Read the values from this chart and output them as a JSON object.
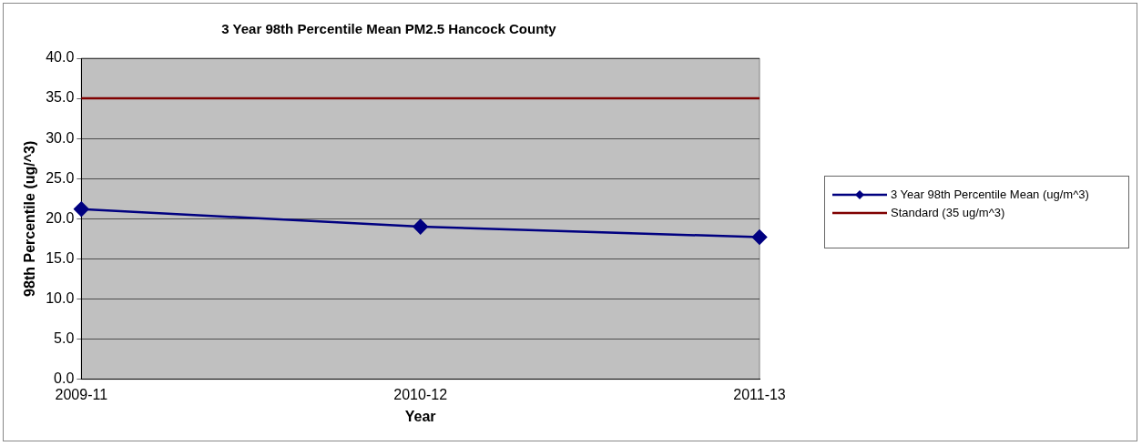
{
  "chart_data": {
    "type": "line",
    "title": "3 Year 98th Percentile Mean PM2.5 Hancock County",
    "xlabel": "Year",
    "ylabel": "98th Percentile (ug/^3)",
    "categories": [
      "2009-11",
      "2010-12",
      "2011-13"
    ],
    "series": [
      {
        "name": "3 Year 98th Percentile Mean (ug/m^3)",
        "color": "#000080",
        "values": [
          21.2,
          19.0,
          17.7
        ],
        "marker": "diamond"
      },
      {
        "name": "Standard (35 ug/m^3)",
        "color": "#800000",
        "values": [
          35,
          35,
          35
        ],
        "marker": "none"
      }
    ],
    "ylim": [
      0,
      40
    ],
    "yticks": [
      {
        "value": 0,
        "label": "0.0"
      },
      {
        "value": 5,
        "label": "5.0"
      },
      {
        "value": 10,
        "label": "10.0"
      },
      {
        "value": 15,
        "label": "15.0"
      },
      {
        "value": 20,
        "label": "20.0"
      },
      {
        "value": 25,
        "label": "25.0"
      },
      {
        "value": 30,
        "label": "30.0"
      },
      {
        "value": 35,
        "label": "35.0"
      },
      {
        "value": 40,
        "label": "40.0"
      }
    ],
    "grid": "y",
    "legend": "right",
    "line_style": "solid"
  }
}
